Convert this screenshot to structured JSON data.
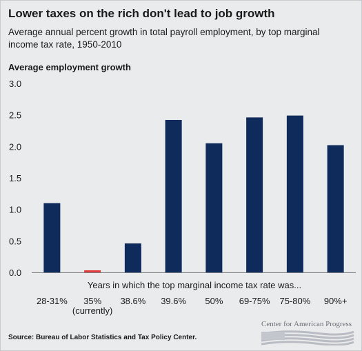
{
  "chart_data": {
    "type": "bar",
    "title": "Lower taxes on the rich don't lead to job growth",
    "subtitle": "Average annual percent growth in total payroll employment, by top marginal income tax rate, 1950-2010",
    "ylabel": "Average employment growth",
    "xlabel": "Years in which the top marginal income tax rate was...",
    "categories": [
      "28-31%",
      "35%\n(currently)",
      "38.6%",
      "39.6%",
      "50%",
      "69-75%",
      "75-80%",
      "90%+"
    ],
    "values": [
      1.1,
      0.02,
      0.46,
      2.42,
      2.05,
      2.46,
      2.49,
      2.02
    ],
    "bar_colors": [
      "#0f2b5b",
      "#e23b3b",
      "#0f2b5b",
      "#0f2b5b",
      "#0f2b5b",
      "#0f2b5b",
      "#0f2b5b",
      "#0f2b5b"
    ],
    "yticks": [
      "0.0",
      "0.5",
      "1.0",
      "1.5",
      "2.0",
      "2.5",
      "3.0"
    ],
    "ylim": [
      0,
      3.0
    ],
    "grid": false,
    "legend": "none"
  },
  "footer": {
    "source": "Source: Bureau of Labor Statistics and Tax Policy Center.",
    "logo_text": "Center for American Progress"
  }
}
